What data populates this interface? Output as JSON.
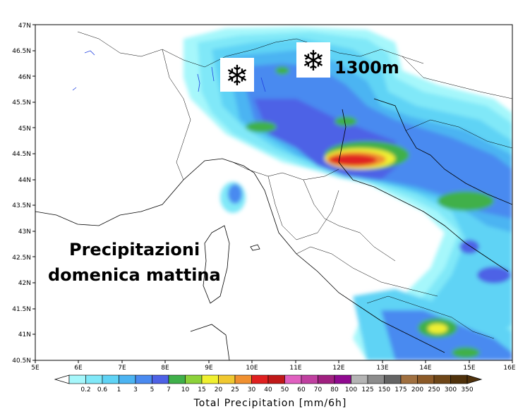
{
  "map": {
    "lat_ticks": [
      "47N",
      "46.5N",
      "46N",
      "45.5N",
      "45N",
      "44.5N",
      "44N",
      "43.5N",
      "43N",
      "42.5N",
      "42N",
      "41.5N",
      "41N",
      "40.5N"
    ],
    "lon_ticks": [
      "5E",
      "6E",
      "7E",
      "8E",
      "9E",
      "10E",
      "11E",
      "12E",
      "13E",
      "14E",
      "15E",
      "16E"
    ],
    "extent": {
      "lon": [
        5,
        16
      ],
      "lat": [
        40.5,
        47
      ]
    }
  },
  "annotations": {
    "title_line1": "Precipitazioni",
    "title_line2": "domenica mattina",
    "snow_level": "1300m",
    "snow_icon_1": "snowflake-icon",
    "snow_icon_2": "snowflake-icon"
  },
  "legend": {
    "title": "Total Precipitation [mm/6h]",
    "labels": [
      "0.2",
      "0.6",
      "1",
      "3",
      "5",
      "7",
      "10",
      "15",
      "20",
      "25",
      "30",
      "40",
      "50",
      "60",
      "70",
      "80",
      "100",
      "125",
      "150",
      "175",
      "200",
      "250",
      "300",
      "350"
    ],
    "colors": [
      "#a6f7fb",
      "#80e8f8",
      "#5fd3f5",
      "#4cb4f2",
      "#4a8af0",
      "#4e62e6",
      "#3fb04a",
      "#8cd23a",
      "#f0f030",
      "#f0c830",
      "#f09030",
      "#e02020",
      "#c01818",
      "#e060c0",
      "#c040a0",
      "#a02080",
      "#900a90",
      "#b4b4b4",
      "#8c8c8c",
      "#646464",
      "#a07040",
      "#8c5a28",
      "#6e4618",
      "#50320c"
    ]
  }
}
